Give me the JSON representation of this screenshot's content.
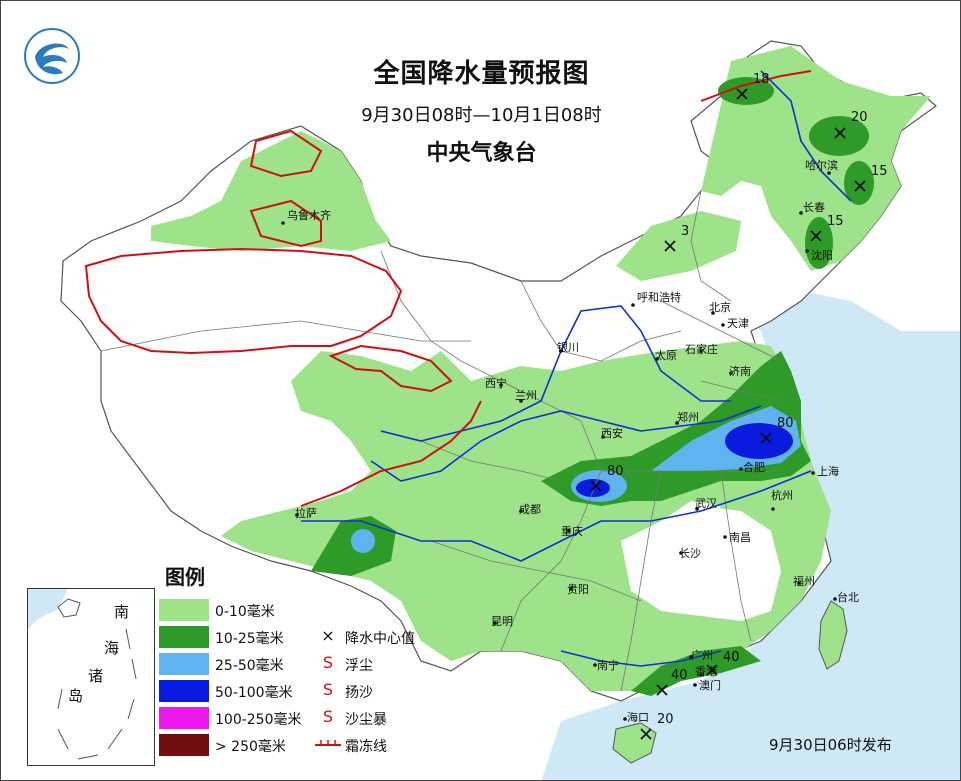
{
  "title": "全国降水量预报图",
  "period": "9月30日08时—10月1日08时",
  "issuer": "中央气象台",
  "issued": "9月30日06时发布",
  "legend": {
    "heading": "图例",
    "swatches": [
      {
        "label": "0-10毫米",
        "color": "#9ee38a"
      },
      {
        "label": "10-25毫米",
        "color": "#2e9b28"
      },
      {
        "label": "25-50毫米",
        "color": "#5fb3ef"
      },
      {
        "label": "50-100毫米",
        "color": "#0a1adf"
      },
      {
        "label": "100-250毫米",
        "color": "#ef19ef"
      },
      {
        "label": "> 250毫米",
        "color": "#6e0e0e"
      }
    ],
    "symbols": [
      {
        "glyph": "×",
        "label": "降水中心值",
        "icon": "cross-icon"
      },
      {
        "glyph": "S",
        "label": "浮尘",
        "icon": "floating-dust-icon"
      },
      {
        "glyph": "S",
        "label": "扬沙",
        "icon": "blowing-sand-icon"
      },
      {
        "glyph": "S",
        "label": "沙尘暴",
        "icon": "sandstorm-icon"
      },
      {
        "glyph": "",
        "label": "霜冻线",
        "icon": "frost-line-icon"
      }
    ]
  },
  "inset": {
    "labels": [
      "南",
      "海",
      "诸",
      "岛"
    ]
  },
  "cities": {
    "urumqi": "乌鲁木齐",
    "hohhot": "呼和浩特",
    "beijing": "北京",
    "tianjin": "天津",
    "shijiazhuang": "石家庄",
    "taiyuan": "太原",
    "jinan": "济南",
    "yinchuan": "银川",
    "xining": "西宁",
    "lanzhou": "兰州",
    "zhengzhou": "郑州",
    "xian": "西安",
    "hefei": "合肥",
    "shanghai": "上海",
    "nanjing_area": "",
    "hangzhou": "杭州",
    "wuhan": "武汉",
    "chengdu": "成都",
    "chongqing": "重庆",
    "changsha": "长沙",
    "nanchang": "南昌",
    "fuzhou": "福州",
    "taibei": "台北",
    "guiyang": "贵阳",
    "kunming": "昆明",
    "nanning": "南宁",
    "guangzhou": "广州",
    "xianggang": "香港",
    "aomen": "澳门",
    "haikou": "海口",
    "lasa": "拉萨",
    "haerbin": "哈尔滨",
    "changchun": "长春",
    "shenyang": "沈阳"
  },
  "centers": [
    {
      "id": "heilongjiang-north",
      "value": "18"
    },
    {
      "id": "heilongjiang-central",
      "value": "20"
    },
    {
      "id": "haerbin-east",
      "value": "15"
    },
    {
      "id": "jilin",
      "value": "15"
    },
    {
      "id": "inner-mongolia",
      "value": "3"
    },
    {
      "id": "anhui-jiangsu",
      "value": "80"
    },
    {
      "id": "sichuan-east",
      "value": "80"
    },
    {
      "id": "guangdong-east",
      "value": "40"
    },
    {
      "id": "guangdong-west",
      "value": "40"
    },
    {
      "id": "hainan",
      "value": "20"
    }
  ],
  "colors": {
    "sea": "#cfe8f6",
    "land": "#ffffff",
    "border": "#555555",
    "river": "#1030d0",
    "frost": "#d01010"
  }
}
